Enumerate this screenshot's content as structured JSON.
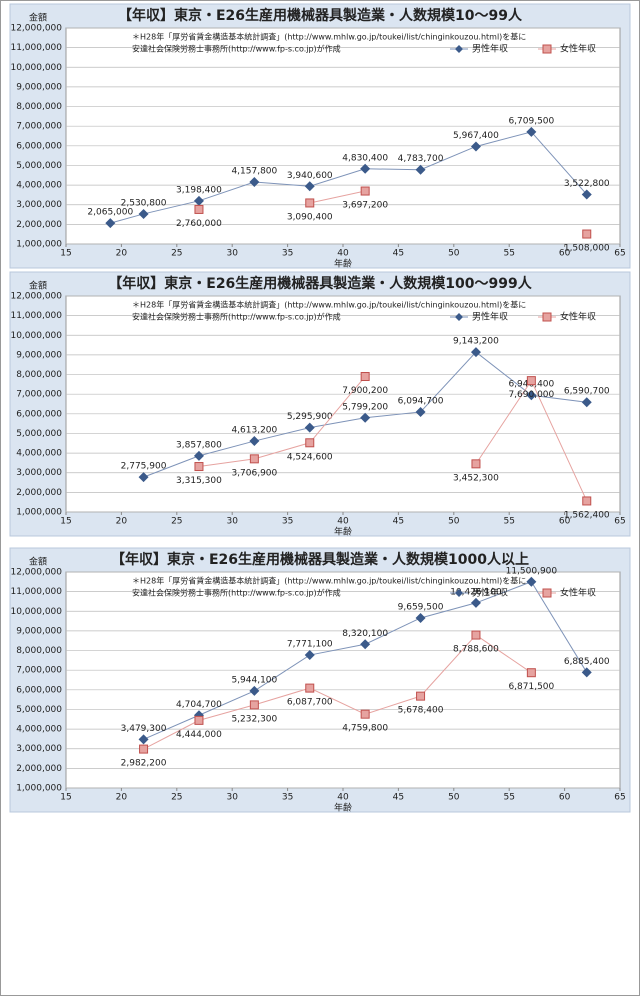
{
  "chart_data": [
    {
      "type": "line",
      "title": "【年収】東京・E26生産用機械器具製造業・人数規模10～99人",
      "notes": [
        "＊H28年「厚労省賃金構造基本統計調査」(http://www.mhlw.go.jp/toukei/list/chinginkouzou.html)を基に",
        "安達社会保険労務士事務所(http://www.fp-s.co.jp)が作成"
      ],
      "y_label": "金額",
      "x_label": "年齢",
      "legend": "top-right",
      "grid": true,
      "x": [
        19,
        22,
        27,
        32,
        37,
        42,
        47,
        52,
        57,
        62
      ],
      "series": [
        {
          "name": "男性年収",
          "color": "#3b5a8a",
          "values": [
            2065000,
            2530800,
            3198400,
            4157800,
            3940600,
            4830400,
            4783700,
            5967400,
            6709500,
            3522800
          ],
          "value_labels": [
            "2,065,000",
            "2,530,800",
            "3,198,400",
            "4,157,800",
            "3,940,600",
            "4,830,400",
            "4,783,700",
            "5,967,400",
            "6,709,500",
            "3,522,800"
          ]
        },
        {
          "name": "女性年収",
          "color": "#c0504d",
          "values": [
            null,
            null,
            2760000,
            null,
            3090400,
            3697200,
            null,
            null,
            null,
            1508000
          ],
          "value_labels": [
            null,
            null,
            "2,760,000",
            null,
            "3,090,400",
            "3,697,200",
            null,
            null,
            null,
            "1,508,000"
          ]
        }
      ],
      "xlim": [
        15,
        65
      ],
      "xticks": [
        15,
        20,
        25,
        30,
        35,
        40,
        45,
        50,
        55,
        60,
        65
      ],
      "ylim": [
        1000000,
        12000000
      ],
      "yticks": [
        {
          "value": 1000000,
          "label": "1,000,000"
        },
        {
          "value": 2000000,
          "label": "2,000,000"
        },
        {
          "value": 3000000,
          "label": "3,000,000"
        },
        {
          "value": 4000000,
          "label": "4,000,000"
        },
        {
          "value": 5000000,
          "label": "5,000,000"
        },
        {
          "value": 6000000,
          "label": "6,000,000"
        },
        {
          "value": 7000000,
          "label": "7,000,000"
        },
        {
          "value": 8000000,
          "label": "8,000,000"
        },
        {
          "value": 9000000,
          "label": "9,000,000"
        },
        {
          "value": 10000000,
          "label": "10,000,000"
        },
        {
          "value": 11000000,
          "label": "11,000,000"
        },
        {
          "value": 12000000,
          "label": "12,000,000"
        }
      ]
    },
    {
      "type": "line",
      "title": "【年収】東京・E26生産用機械器具製造業・人数規模100～999人",
      "notes": [
        "＊H28年「厚労省賃金構造基本統計調査」(http://www.mhlw.go.jp/toukei/list/chinginkouzou.html)を基に",
        "安達社会保険労務士事務所(http://www.fp-s.co.jp)が作成"
      ],
      "y_label": "金額",
      "x_label": "年齢",
      "legend": "top-right",
      "grid": true,
      "x": [
        22,
        27,
        32,
        37,
        42,
        47,
        52,
        57,
        62
      ],
      "series": [
        {
          "name": "男性年収",
          "color": "#3b5a8a",
          "values": [
            2775900,
            3857800,
            4613200,
            5295900,
            5799200,
            6094700,
            9143200,
            6946400,
            6590700
          ],
          "value_labels": [
            "2,775,900",
            "3,857,800",
            "4,613,200",
            "5,295,900",
            "5,799,200",
            "6,094,700",
            "9,143,200",
            "6,946,400",
            "6,590,700"
          ]
        },
        {
          "name": "女性年収",
          "color": "#c0504d",
          "values": [
            null,
            3315300,
            3706900,
            4524600,
            7900200,
            null,
            3452300,
            7690000,
            1562400
          ],
          "value_labels": [
            null,
            "3,315,300",
            "3,706,900",
            "4,524,600",
            "7,900,200",
            null,
            "3,452,300",
            "7,690,000",
            "1,562,400"
          ]
        }
      ],
      "xlim": [
        15,
        65
      ],
      "xticks": [
        15,
        20,
        25,
        30,
        35,
        40,
        45,
        50,
        55,
        60,
        65
      ],
      "ylim": [
        1000000,
        12000000
      ],
      "yticks": [
        {
          "value": 1000000,
          "label": "1,000,000"
        },
        {
          "value": 2000000,
          "label": "2,000,000"
        },
        {
          "value": 3000000,
          "label": "3,000,000"
        },
        {
          "value": 4000000,
          "label": "4,000,000"
        },
        {
          "value": 5000000,
          "label": "5,000,000"
        },
        {
          "value": 6000000,
          "label": "6,000,000"
        },
        {
          "value": 7000000,
          "label": "7,000,000"
        },
        {
          "value": 8000000,
          "label": "8,000,000"
        },
        {
          "value": 9000000,
          "label": "9,000,000"
        },
        {
          "value": 10000000,
          "label": "10,000,000"
        },
        {
          "value": 11000000,
          "label": "11,000,000"
        },
        {
          "value": 12000000,
          "label": "12,000,000"
        }
      ]
    },
    {
      "type": "line",
      "title": "【年収】東京・E26生産用機械器具製造業・人数規模1000人以上",
      "notes": [
        "＊H28年「厚労省賃金構造基本統計調査」(http://www.mhlw.go.jp/toukei/list/chinginkouzou.html)を基に",
        "安達社会保険労務士事務所(http://www.fp-s.co.jp)が作成"
      ],
      "y_label": "金額",
      "x_label": "年齢",
      "legend": "top-right",
      "grid": true,
      "x": [
        22,
        27,
        32,
        37,
        42,
        47,
        52,
        57,
        62
      ],
      "series": [
        {
          "name": "男性年収",
          "color": "#3b5a8a",
          "values": [
            3479300,
            4704700,
            5944100,
            7771100,
            8320100,
            9659500,
            10426100,
            11500900,
            6885400
          ],
          "value_labels": [
            "3,479,300",
            "4,704,700",
            "5,944,100",
            "7,771,100",
            "8,320,100",
            "9,659,500",
            "10,426,100",
            "11,500,900",
            "6,885,400"
          ]
        },
        {
          "name": "女性年収",
          "color": "#c0504d",
          "values": [
            2982200,
            4444000,
            5232300,
            6087700,
            4759800,
            5678400,
            8788600,
            6871500,
            null
          ],
          "value_labels": [
            "2,982,200",
            "4,444,000",
            "5,232,300",
            "6,087,700",
            "4,759,800",
            "5,678,400",
            "8,788,600",
            "6,871,500",
            null
          ]
        }
      ],
      "xlim": [
        15,
        65
      ],
      "xticks": [
        15,
        20,
        25,
        30,
        35,
        40,
        45,
        50,
        55,
        60,
        65
      ],
      "ylim": [
        1000000,
        12000000
      ],
      "yticks": [
        {
          "value": 1000000,
          "label": "1,000,000"
        },
        {
          "value": 2000000,
          "label": "2,000,000"
        },
        {
          "value": 3000000,
          "label": "3,000,000"
        },
        {
          "value": 4000000,
          "label": "4,000,000"
        },
        {
          "value": 5000000,
          "label": "5,000,000"
        },
        {
          "value": 6000000,
          "label": "6,000,000"
        },
        {
          "value": 7000000,
          "label": "7,000,000"
        },
        {
          "value": 8000000,
          "label": "8,000,000"
        },
        {
          "value": 9000000,
          "label": "9,000,000"
        },
        {
          "value": 10000000,
          "label": "10,000,000"
        },
        {
          "value": 11000000,
          "label": "11,000,000"
        },
        {
          "value": 12000000,
          "label": "12,000,000"
        }
      ]
    }
  ]
}
